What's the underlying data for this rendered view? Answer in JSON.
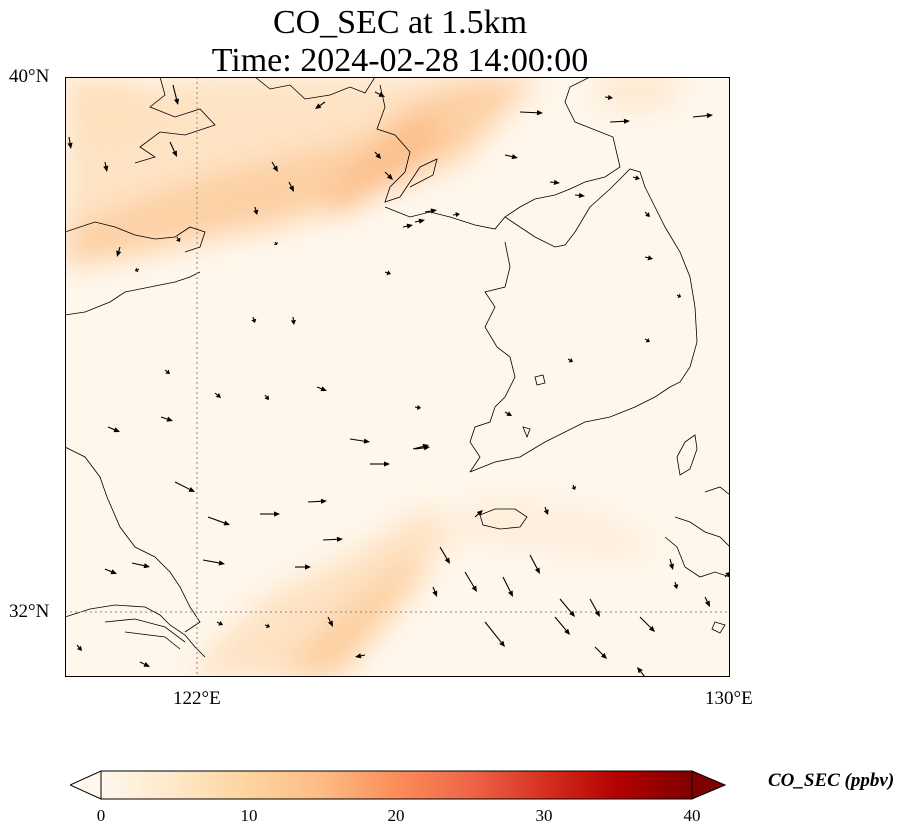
{
  "title_line1": "CO_SEC at 1.5km",
  "title_line2": "Time: 2024-02-28 14:00:00",
  "map": {
    "lon_labels": [
      "122°E",
      "130°E"
    ],
    "lat_labels": [
      "40°N",
      "32°N"
    ],
    "gridline_lons": [
      122
    ],
    "gridline_lats": [
      32
    ],
    "projection_extent_note": ""
  },
  "colorbar": {
    "label": "CO_SEC (ppbv)",
    "ticks": [
      "0",
      "10",
      "20",
      "30",
      "40"
    ],
    "min": 0,
    "max": 40,
    "extend": "both",
    "colormap": "OrRd",
    "colors": [
      "#fff7ec",
      "#fee8c8",
      "#fdd49e",
      "#fdbb84",
      "#fc8d59",
      "#ef6548",
      "#d7301f",
      "#b30000",
      "#7f0000"
    ]
  },
  "field_colors": {
    "background": "#fff7ec",
    "low": "#feecd5",
    "mid": "#fdd4a8",
    "high": "#fcc392"
  },
  "coast_color": "#000000",
  "wind_arrow_color": "#000000"
}
